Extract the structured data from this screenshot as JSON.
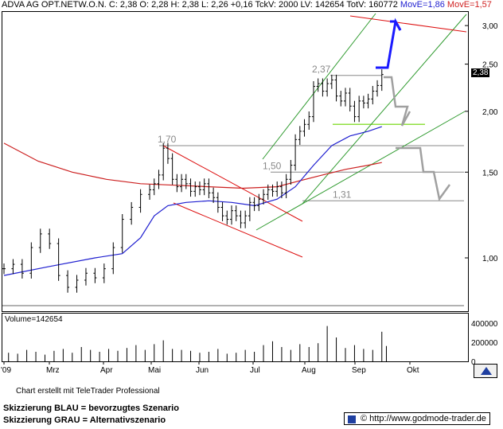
{
  "header": {
    "main": "ADVA AG OPT.NETW.O.N. C: 2,38 O: 2,28 H: 2,38 L: 2,26 +0,16 TckV: 2000 LV: 142654 TotV: 160772",
    "ma1": "MovE=1,86",
    "ma2": "MovE=1,57"
  },
  "price_box": "2,38",
  "volume_label": "Volume=142654",
  "footer": {
    "credit": "Chart erstellt mit TeleTrader Professional",
    "legend_blue": "Skizzierung BLAU = bevorzugtes Szenario",
    "legend_grey": "Skizzierung GRAU = Alternativszenario",
    "website": "© http://www.godmode-trader.de"
  },
  "colors": {
    "price": "#000000",
    "ma_fast": "#1f1fd0",
    "ma_slow": "#cc2020",
    "channel_up": "#2e9a2e",
    "channel_down": "#dd1010",
    "scenario_blue": "#1a1aff",
    "scenario_grey": "#a0a0a0",
    "support": "#888888",
    "highlight": "#90e040"
  },
  "chart_data": {
    "type": "line",
    "title": "ADVA AG OPT.NETW.O.N.",
    "x_ticks": [
      "'09",
      "Mrz",
      "Apr",
      "Mai",
      "Jun",
      "Jul",
      "Aug",
      "Sep",
      "Okt"
    ],
    "y_ticks": [
      "1,00",
      "1,50",
      "2,00",
      "2,50",
      "3,00"
    ],
    "y_scale": "log",
    "ylim": [
      0.78,
      3.2
    ],
    "volume_ticks": [
      "400000",
      "200000",
      "0"
    ],
    "volume_ylim": [
      0,
      500000
    ],
    "levels": [
      {
        "value": 2.37,
        "label": "2,37"
      },
      {
        "value": 1.7,
        "label": "1,70"
      },
      {
        "value": 1.5,
        "label": "1,50"
      },
      {
        "value": 1.31,
        "label": "1,31"
      }
    ],
    "price_close": [
      [
        0,
        0.95
      ],
      [
        4,
        0.97
      ],
      [
        8,
        0.93
      ],
      [
        12,
        1.05
      ],
      [
        16,
        1.12
      ],
      [
        20,
        1.07
      ],
      [
        24,
        0.92
      ],
      [
        28,
        0.87
      ],
      [
        32,
        0.9
      ],
      [
        36,
        0.93
      ],
      [
        40,
        0.91
      ],
      [
        44,
        0.95
      ],
      [
        48,
        1.05
      ],
      [
        52,
        1.2
      ],
      [
        56,
        1.27
      ],
      [
        60,
        1.35
      ],
      [
        64,
        1.38
      ],
      [
        66,
        1.42
      ],
      [
        68,
        1.48
      ],
      [
        70,
        1.68
      ],
      [
        72,
        1.6
      ],
      [
        74,
        1.45
      ],
      [
        76,
        1.4
      ],
      [
        78,
        1.45
      ],
      [
        80,
        1.42
      ],
      [
        82,
        1.37
      ],
      [
        84,
        1.4
      ],
      [
        86,
        1.38
      ],
      [
        88,
        1.42
      ],
      [
        90,
        1.36
      ],
      [
        92,
        1.33
      ],
      [
        94,
        1.27
      ],
      [
        96,
        1.22
      ],
      [
        98,
        1.2
      ],
      [
        100,
        1.25
      ],
      [
        102,
        1.22
      ],
      [
        104,
        1.18
      ],
      [
        106,
        1.22
      ],
      [
        108,
        1.3
      ],
      [
        110,
        1.28
      ],
      [
        112,
        1.32
      ],
      [
        114,
        1.35
      ],
      [
        116,
        1.38
      ],
      [
        118,
        1.37
      ],
      [
        120,
        1.4
      ],
      [
        122,
        1.36
      ],
      [
        124,
        1.45
      ],
      [
        126,
        1.55
      ],
      [
        128,
        1.75
      ],
      [
        130,
        1.82
      ],
      [
        132,
        1.88
      ],
      [
        134,
        1.95
      ],
      [
        136,
        2.25
      ],
      [
        138,
        2.28
      ],
      [
        140,
        2.2
      ],
      [
        142,
        2.28
      ],
      [
        144,
        2.32
      ],
      [
        146,
        2.15
      ],
      [
        148,
        2.1
      ],
      [
        150,
        2.18
      ],
      [
        152,
        2.05
      ],
      [
        154,
        1.95
      ],
      [
        156,
        2.1
      ],
      [
        158,
        2.08
      ],
      [
        160,
        2.12
      ],
      [
        162,
        2.2
      ],
      [
        164,
        2.26
      ],
      [
        166,
        2.38
      ]
    ],
    "volume": [
      [
        2,
        90000
      ],
      [
        6,
        80000
      ],
      [
        10,
        120000
      ],
      [
        14,
        100000
      ],
      [
        18,
        70000
      ],
      [
        22,
        110000
      ],
      [
        26,
        130000
      ],
      [
        30,
        90000
      ],
      [
        34,
        150000
      ],
      [
        38,
        120000
      ],
      [
        42,
        100000
      ],
      [
        46,
        130000
      ],
      [
        50,
        110000
      ],
      [
        54,
        140000
      ],
      [
        58,
        170000
      ],
      [
        62,
        120000
      ],
      [
        66,
        180000
      ],
      [
        70,
        220000
      ],
      [
        74,
        130000
      ],
      [
        78,
        120000
      ],
      [
        82,
        110000
      ],
      [
        86,
        90000
      ],
      [
        90,
        100000
      ],
      [
        94,
        130000
      ],
      [
        98,
        80000
      ],
      [
        102,
        90000
      ],
      [
        106,
        120000
      ],
      [
        110,
        100000
      ],
      [
        114,
        170000
      ],
      [
        118,
        210000
      ],
      [
        122,
        150000
      ],
      [
        126,
        120000
      ],
      [
        130,
        180000
      ],
      [
        134,
        150000
      ],
      [
        138,
        190000
      ],
      [
        142,
        370000
      ],
      [
        146,
        250000
      ],
      [
        150,
        140000
      ],
      [
        154,
        170000
      ],
      [
        158,
        130000
      ],
      [
        162,
        120000
      ],
      [
        166,
        310000
      ],
      [
        168,
        160772
      ]
    ],
    "ma_fast": [
      [
        0,
        0.92
      ],
      [
        20,
        0.96
      ],
      [
        40,
        1.0
      ],
      [
        52,
        1.02
      ],
      [
        60,
        1.1
      ],
      [
        66,
        1.22
      ],
      [
        72,
        1.28
      ],
      [
        80,
        1.3
      ],
      [
        90,
        1.31
      ],
      [
        100,
        1.3
      ],
      [
        110,
        1.28
      ],
      [
        120,
        1.32
      ],
      [
        128,
        1.4
      ],
      [
        136,
        1.55
      ],
      [
        144,
        1.7
      ],
      [
        152,
        1.78
      ],
      [
        160,
        1.82
      ],
      [
        166,
        1.86
      ]
    ],
    "ma_slow": [
      [
        0,
        1.72
      ],
      [
        15,
        1.58
      ],
      [
        30,
        1.5
      ],
      [
        45,
        1.45
      ],
      [
        60,
        1.42
      ],
      [
        75,
        1.41
      ],
      [
        90,
        1.4
      ],
      [
        105,
        1.39
      ],
      [
        120,
        1.4
      ],
      [
        130,
        1.44
      ],
      [
        140,
        1.48
      ],
      [
        150,
        1.52
      ],
      [
        160,
        1.55
      ],
      [
        166,
        1.57
      ]
    ]
  }
}
